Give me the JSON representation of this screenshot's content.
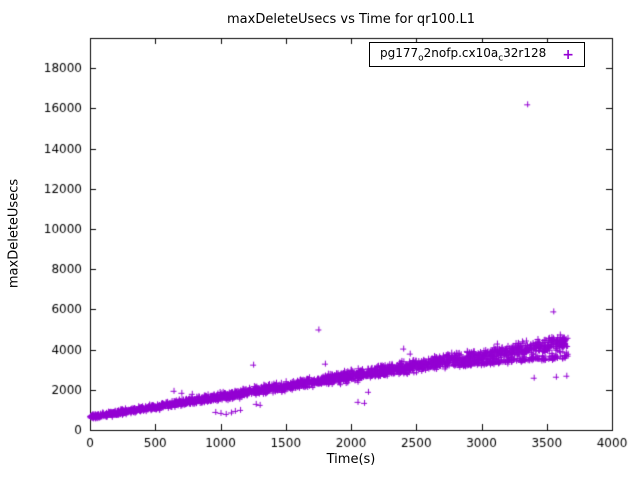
{
  "chart_data": {
    "type": "scatter",
    "title": "maxDeleteUsecs vs Time for qr100.L1",
    "xlabel": "Time(s)",
    "ylabel": "maxDeleteUsecs",
    "xlim": [
      0,
      4000
    ],
    "ylim": [
      0,
      19500
    ],
    "xticks": [
      0,
      500,
      1000,
      1500,
      2000,
      2500,
      3000,
      3500,
      4000
    ],
    "yticks": [
      0,
      2000,
      4000,
      6000,
      8000,
      10000,
      12000,
      14000,
      16000,
      18000
    ],
    "grid": false,
    "marker": "plus",
    "color": "#9400d3",
    "legend": {
      "position": "top-right",
      "label": "pg177o2nofp.cx10ac32r128",
      "label_parts": [
        {
          "t": "pg177"
        },
        {
          "t": "o",
          "sub": true
        },
        {
          "t": "2nofp.cx10a"
        },
        {
          "t": "c",
          "sub": true
        },
        {
          "t": "32r128"
        }
      ],
      "marker_glyph": "+"
    },
    "series": [
      {
        "name": "pg177o2nofp.cx10ac32r128",
        "band": {
          "seed": 42,
          "n": 2800,
          "x_min": 0,
          "x_max": 3660,
          "intercept": 650,
          "slope": 1.02,
          "noise_base": 110,
          "noise_growth": 0.07,
          "lower_branch": {
            "x_start": 2800,
            "fraction": 0.28,
            "intercept": 3250,
            "slope": 0.5,
            "noise": 120
          }
        },
        "outliers": [
          [
            3350,
            16200
          ],
          [
            3550,
            5900
          ],
          [
            1750,
            5000
          ],
          [
            2400,
            4050
          ],
          [
            2450,
            3800
          ],
          [
            2480,
            3350
          ],
          [
            1250,
            3250
          ],
          [
            1800,
            3300
          ],
          [
            640,
            1950
          ],
          [
            700,
            1850
          ],
          [
            780,
            1800
          ],
          [
            960,
            900
          ],
          [
            1000,
            850
          ],
          [
            1040,
            800
          ],
          [
            1080,
            870
          ],
          [
            1110,
            950
          ],
          [
            1150,
            1000
          ],
          [
            1270,
            1300
          ],
          [
            1300,
            1250
          ],
          [
            2050,
            1400
          ],
          [
            2100,
            1350
          ],
          [
            2130,
            1900
          ],
          [
            3400,
            2600
          ],
          [
            3570,
            2650
          ],
          [
            3650,
            2700
          ],
          [
            3600,
            4750
          ],
          [
            3620,
            4600
          ]
        ]
      }
    ]
  }
}
